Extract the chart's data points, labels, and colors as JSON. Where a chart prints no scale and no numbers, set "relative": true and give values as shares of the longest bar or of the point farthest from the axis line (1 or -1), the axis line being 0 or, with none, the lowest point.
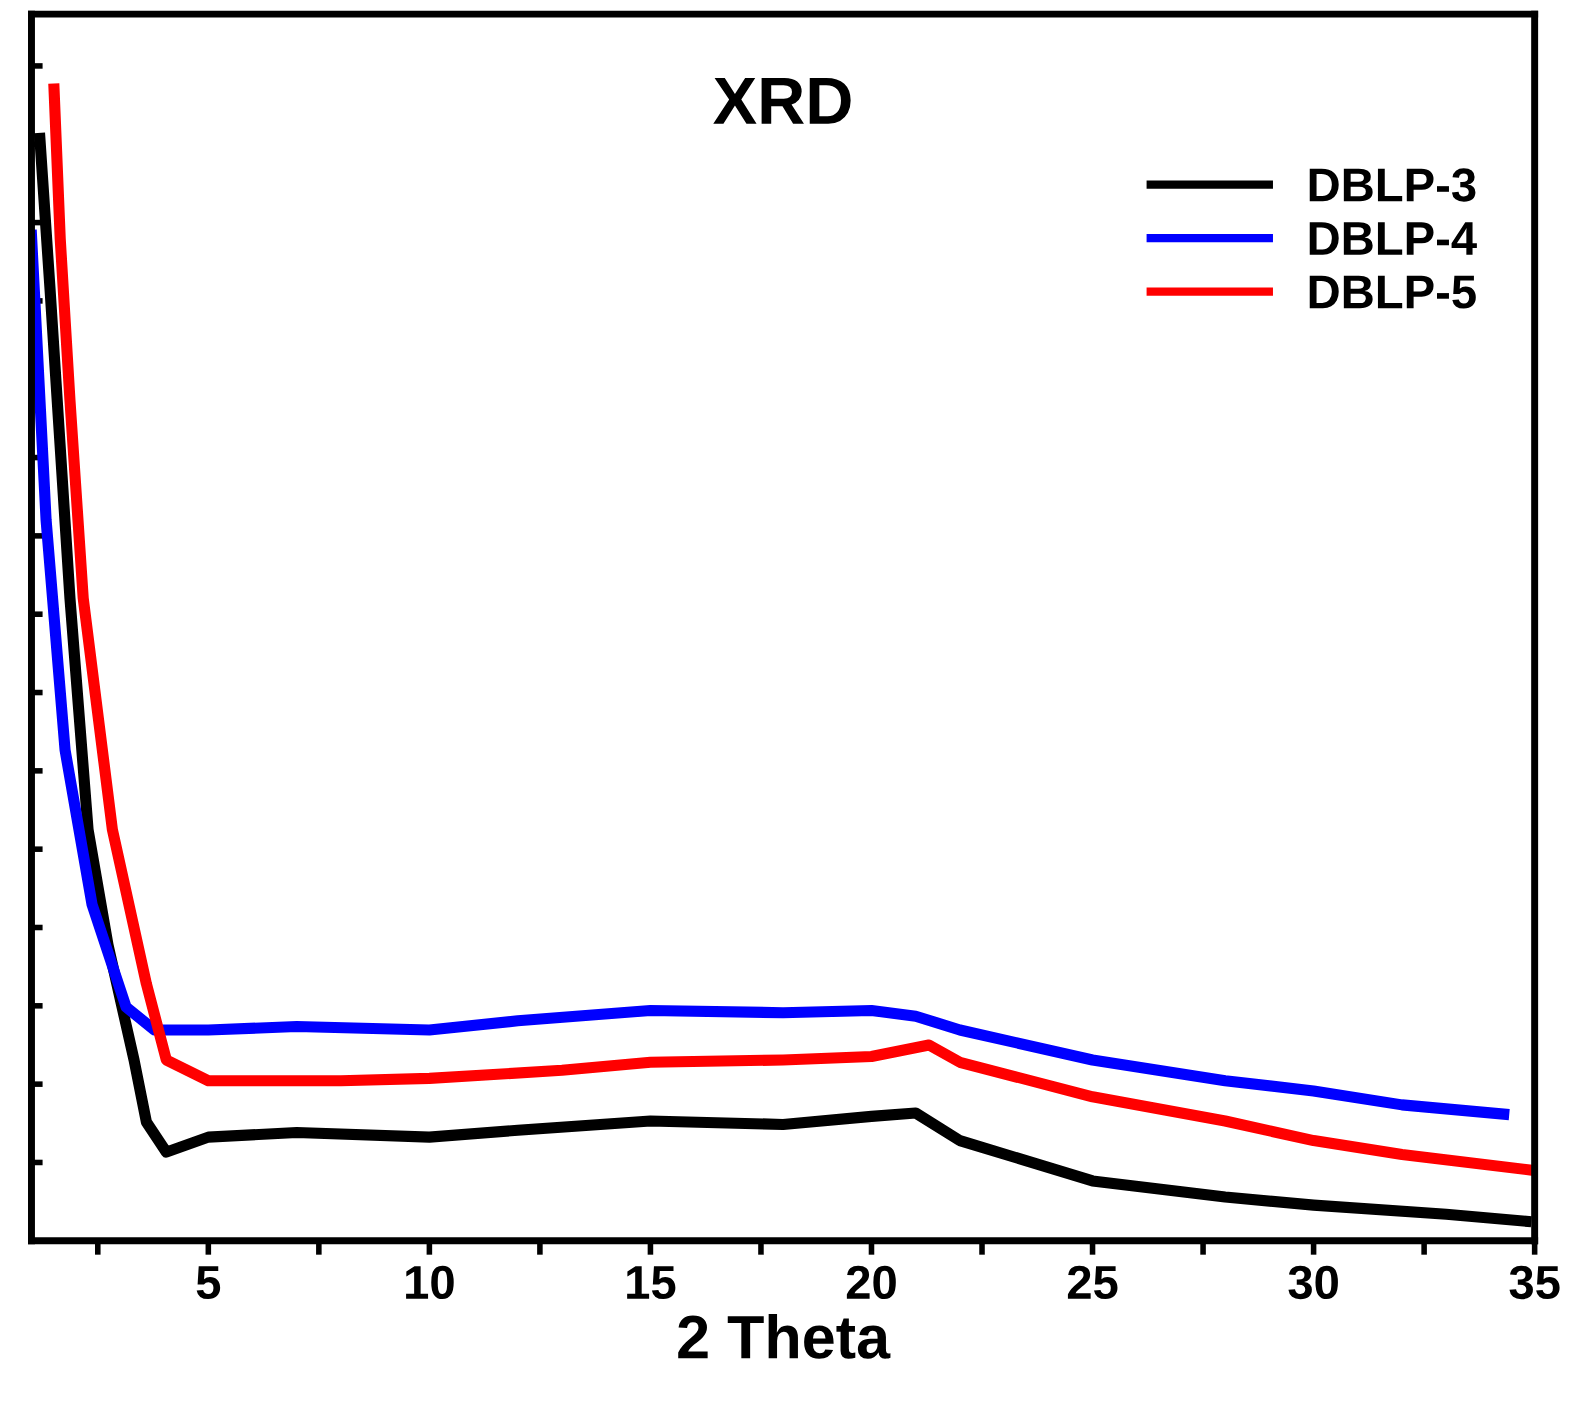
{
  "chart_data": {
    "type": "line",
    "title": "XRD",
    "xlabel": "2 Theta",
    "relative": true,
    "xlim": [
      1,
      35
    ],
    "xticks": [
      {
        "value": 2.5,
        "label": null
      },
      5,
      {
        "value": 7.5,
        "label": null
      },
      10,
      {
        "value": 12.5,
        "label": null
      },
      15,
      {
        "value": 17.5,
        "label": null
      },
      20,
      {
        "value": 22.5,
        "label": null
      },
      25,
      {
        "value": 27.5,
        "label": null
      },
      30,
      {
        "value": 32.5,
        "label": null
      },
      35
    ],
    "tick_labels": "x",
    "grid": false,
    "legend": "top right",
    "marker": "none",
    "line_style": "solid",
    "series": [
      {
        "name": "DBLP-3",
        "color": "#000000",
        "x": [
          1.19,
          1.42,
          1.87,
          2.28,
          2.73,
          3.32,
          3.6,
          4.05,
          5,
          7,
          10,
          12,
          15,
          18,
          20,
          21,
          22,
          25,
          28,
          30,
          33,
          34.8
        ],
        "values": [
          0.957,
          0.826,
          0.558,
          0.357,
          0.257,
          0.157,
          0.103,
          0.077,
          0.09,
          0.094,
          0.09,
          0.096,
          0.104,
          0.101,
          0.108,
          0.111,
          0.087,
          0.052,
          0.038,
          0.031,
          0.023,
          0.017
        ]
      },
      {
        "name": "DBLP-4",
        "color": "#0000ff",
        "x": [
          1.0,
          1.33,
          1.76,
          2.37,
          3.14,
          3.78,
          5,
          7,
          10,
          12,
          15,
          18,
          20,
          21,
          22,
          25,
          28,
          30,
          32,
          34.3
        ],
        "values": [
          0.873,
          0.626,
          0.426,
          0.292,
          0.203,
          0.183,
          0.183,
          0.186,
          0.183,
          0.191,
          0.2,
          0.198,
          0.2,
          0.195,
          0.183,
          0.157,
          0.139,
          0.13,
          0.118,
          0.11
        ]
      },
      {
        "name": "DBLP-5",
        "color": "#ff0000",
        "x": [
          1.51,
          1.65,
          1.87,
          2.17,
          2.83,
          3.6,
          4.05,
          5,
          8,
          10,
          13,
          15,
          18,
          20,
          21.3,
          22,
          25,
          28,
          30,
          32,
          35
        ],
        "values": [
          1.0,
          0.87,
          0.73,
          0.558,
          0.357,
          0.223,
          0.157,
          0.139,
          0.139,
          0.141,
          0.148,
          0.155,
          0.157,
          0.16,
          0.17,
          0.155,
          0.125,
          0.104,
          0.087,
          0.075,
          0.061
        ]
      }
    ]
  }
}
